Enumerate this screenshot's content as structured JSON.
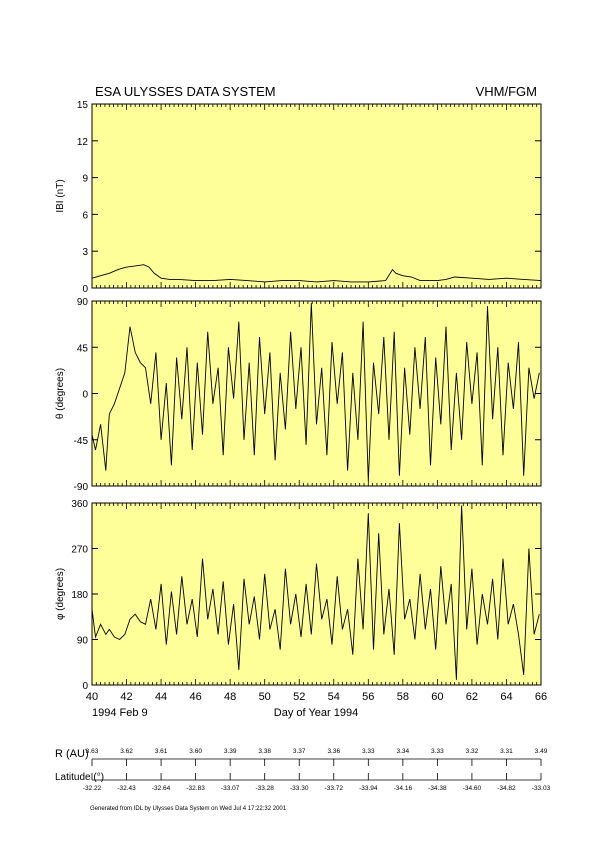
{
  "header": {
    "title_left": "ESA ULYSSES DATA SYSTEM",
    "title_right": "VHM/FGM"
  },
  "chart_data": [
    {
      "type": "line",
      "ylabel": "IBI (nT)",
      "ylim": [
        0,
        15
      ],
      "yticks": [
        "0",
        "3",
        "6",
        "9",
        "12",
        "15"
      ],
      "xlim": [
        40,
        66
      ],
      "x": [
        40,
        40.5,
        41,
        41.5,
        42,
        42.5,
        43,
        43.3,
        43.6,
        44,
        44.5,
        45,
        46,
        47,
        48,
        49,
        50,
        51,
        52,
        53,
        54,
        55,
        56,
        57,
        57.4,
        57.6,
        58,
        58.5,
        59,
        60,
        60.5,
        61,
        62,
        63,
        64,
        65,
        66
      ],
      "values": [
        0.8,
        1.0,
        1.2,
        1.5,
        1.7,
        1.8,
        1.9,
        1.7,
        1.2,
        0.8,
        0.7,
        0.7,
        0.6,
        0.6,
        0.7,
        0.6,
        0.5,
        0.6,
        0.6,
        0.5,
        0.6,
        0.5,
        0.5,
        0.6,
        1.5,
        1.2,
        1.0,
        0.9,
        0.6,
        0.6,
        0.7,
        0.9,
        0.8,
        0.7,
        0.8,
        0.7,
        0.6
      ]
    },
    {
      "type": "line",
      "ylabel": "θ (degrees)",
      "ylim": [
        -90,
        90
      ],
      "yticks": [
        "-90",
        "-45",
        "0",
        "45",
        "90"
      ],
      "xlim": [
        40,
        66
      ],
      "x": [
        40,
        40.2,
        40.5,
        40.8,
        41,
        41.3,
        41.6,
        41.9,
        42.2,
        42.5,
        42.8,
        43.1,
        43.4,
        43.7,
        44,
        44.3,
        44.6,
        44.9,
        45.2,
        45.5,
        45.8,
        46.1,
        46.4,
        46.7,
        47,
        47.3,
        47.6,
        47.9,
        48.2,
        48.5,
        48.8,
        49.1,
        49.4,
        49.7,
        50,
        50.3,
        50.6,
        50.9,
        51.2,
        51.5,
        51.8,
        52.1,
        52.4,
        52.7,
        53,
        53.3,
        53.6,
        53.9,
        54.2,
        54.5,
        54.8,
        55.1,
        55.4,
        55.7,
        56,
        56.3,
        56.6,
        56.9,
        57.2,
        57.5,
        57.8,
        58.1,
        58.4,
        58.7,
        59,
        59.3,
        59.6,
        59.9,
        60.2,
        60.5,
        60.8,
        61.1,
        61.4,
        61.7,
        62,
        62.3,
        62.6,
        62.9,
        63.2,
        63.5,
        63.8,
        64.1,
        64.4,
        64.7,
        65,
        65.3,
        65.6,
        65.9
      ],
      "values": [
        -40,
        -55,
        -30,
        -75,
        -20,
        -10,
        5,
        20,
        65,
        40,
        30,
        25,
        -10,
        40,
        -45,
        10,
        -70,
        35,
        -25,
        45,
        -55,
        30,
        -40,
        60,
        -10,
        25,
        -60,
        45,
        -5,
        70,
        -45,
        30,
        -60,
        55,
        -20,
        40,
        -65,
        20,
        -35,
        60,
        -15,
        45,
        -50,
        88,
        -30,
        25,
        -60,
        50,
        -10,
        40,
        -75,
        20,
        -45,
        70,
        -85,
        30,
        -20,
        55,
        -45,
        60,
        -80,
        25,
        -40,
        45,
        -15,
        55,
        -70,
        35,
        -30,
        65,
        -55,
        20,
        -45,
        50,
        -10,
        40,
        -70,
        85,
        -25,
        45,
        -60,
        30,
        -15,
        50,
        -80,
        25,
        -5,
        20
      ]
    },
    {
      "type": "line",
      "ylabel": "φ (degrees)",
      "ylim": [
        0,
        360
      ],
      "yticks": [
        "0",
        "90",
        "180",
        "270",
        "360"
      ],
      "xlim": [
        40,
        66
      ],
      "xticks": [
        "40",
        "42",
        "44",
        "46",
        "48",
        "50",
        "52",
        "54",
        "56",
        "58",
        "60",
        "62",
        "64",
        "66"
      ],
      "xlabel": "Day of Year 1994",
      "x": [
        40,
        40.2,
        40.5,
        40.8,
        41,
        41.3,
        41.6,
        41.9,
        42.2,
        42.5,
        42.8,
        43.1,
        43.4,
        43.7,
        44,
        44.3,
        44.6,
        44.9,
        45.2,
        45.5,
        45.8,
        46.1,
        46.4,
        46.7,
        47,
        47.3,
        47.6,
        47.9,
        48.2,
        48.5,
        48.8,
        49.1,
        49.4,
        49.7,
        50,
        50.3,
        50.6,
        50.9,
        51.2,
        51.5,
        51.8,
        52.1,
        52.4,
        52.7,
        53,
        53.3,
        53.6,
        53.9,
        54.2,
        54.5,
        54.8,
        55.1,
        55.4,
        55.7,
        56,
        56.3,
        56.6,
        56.9,
        57.2,
        57.5,
        57.8,
        58.1,
        58.4,
        58.7,
        59,
        59.3,
        59.6,
        59.9,
        60.2,
        60.5,
        60.8,
        61.1,
        61.4,
        61.7,
        62,
        62.3,
        62.6,
        62.9,
        63.2,
        63.5,
        63.8,
        64.1,
        64.4,
        64.7,
        65,
        65.3,
        65.6,
        65.9
      ],
      "values": [
        150,
        95,
        120,
        100,
        110,
        95,
        90,
        100,
        130,
        140,
        125,
        120,
        170,
        110,
        200,
        80,
        185,
        100,
        215,
        120,
        170,
        95,
        250,
        130,
        190,
        100,
        205,
        80,
        160,
        30,
        210,
        120,
        175,
        90,
        220,
        110,
        150,
        70,
        230,
        120,
        180,
        95,
        200,
        100,
        240,
        130,
        170,
        80,
        215,
        110,
        150,
        60,
        250,
        110,
        340,
        70,
        300,
        100,
        190,
        60,
        320,
        130,
        170,
        90,
        220,
        110,
        190,
        70,
        235,
        120,
        200,
        10,
        355,
        110,
        230,
        80,
        180,
        120,
        210,
        90,
        250,
        120,
        160,
        100,
        20,
        270,
        100,
        140
      ]
    }
  ],
  "date_label": "1994 Feb  9",
  "ephemeris": {
    "r_label": "R (AU)",
    "r_values": [
      "3.63",
      "3.62",
      "3.61",
      "3.60",
      "3.39",
      "3.38",
      "3.37",
      "3.36",
      "3.33",
      "3.34",
      "3.33",
      "3.32",
      "3.31",
      "3.49"
    ],
    "lat_label": "Latitude (°)",
    "lat_values": [
      "-32.22",
      "-32.43",
      "-32.64",
      "-32.83",
      "-33.07",
      "-33.28",
      "-33.30",
      "-33.72",
      "-33.94",
      "-34.16",
      "-34.38",
      "-34.60",
      "-34.82",
      "-33.03"
    ]
  },
  "footer": "Generated from IDL by Ulysses Data System on Wed Jul  4 17:22:32 2001",
  "colors": {
    "panel_bg": "#ffff99",
    "line": "#000000"
  }
}
